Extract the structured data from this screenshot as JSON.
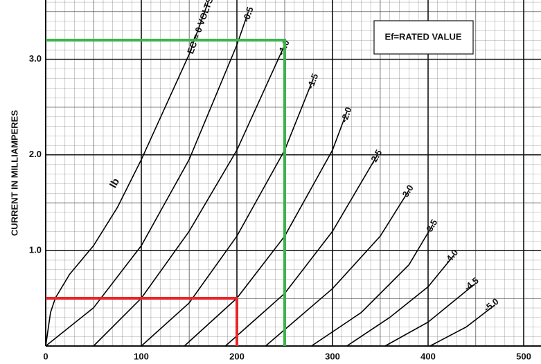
{
  "chart_data": {
    "type": "line",
    "y_label": "CURRENT IN MILLIAMPERES",
    "annotation": "Ef=RATED VALUE",
    "curve_label": "Ib",
    "xlim": [
      0,
      500
    ],
    "ylim": [
      0,
      3.62
    ],
    "xticks": [
      0,
      100,
      200,
      300,
      400,
      500
    ],
    "yticks": [
      {
        "value": 1,
        "label": "1.0"
      },
      {
        "value": 2,
        "label": "2.0"
      },
      {
        "value": 3,
        "label": "3.0"
      }
    ],
    "grid": true,
    "series": [
      {
        "name": "EC = 0 VOLTS",
        "color": "#000000",
        "x": [
          0,
          5,
          10,
          25,
          50,
          75,
          100,
          125,
          150,
          170
        ],
        "values": [
          0,
          0.35,
          0.5,
          0.75,
          1.05,
          1.45,
          1.95,
          2.5,
          3.05,
          3.6
        ]
      },
      {
        "name": "-0.5",
        "color": "#000000",
        "x": [
          0,
          50,
          100,
          150,
          200,
          212
        ],
        "values": [
          0,
          0.4,
          1.05,
          1.95,
          3.15,
          3.5
        ]
      },
      {
        "name": "-1.0",
        "color": "#000000",
        "x": [
          50,
          100,
          150,
          200,
          250
        ],
        "values": [
          0,
          0.5,
          1.2,
          2.05,
          3.15
        ]
      },
      {
        "name": "-1.5",
        "color": "#000000",
        "x": [
          100,
          150,
          200,
          250,
          280
        ],
        "values": [
          0,
          0.45,
          1.15,
          2.05,
          2.8
        ]
      },
      {
        "name": "-2.0",
        "color": "#000000",
        "x": [
          145,
          200,
          250,
          300,
          315
        ],
        "values": [
          0,
          0.5,
          1.15,
          2.05,
          2.45
        ]
      },
      {
        "name": "-2.5",
        "color": "#000000",
        "x": [
          188,
          250,
          300,
          347
        ],
        "values": [
          0,
          0.55,
          1.2,
          2.0
        ]
      },
      {
        "name": "-3.0",
        "color": "#000000",
        "x": [
          230,
          300,
          350,
          380
        ],
        "values": [
          0,
          0.6,
          1.15,
          1.63
        ]
      },
      {
        "name": "-3.5",
        "color": "#000000",
        "x": [
          278,
          330,
          380,
          405
        ],
        "values": [
          0,
          0.35,
          0.85,
          1.27
        ]
      },
      {
        "name": "-4.0",
        "color": "#000000",
        "x": [
          315,
          360,
          400,
          427
        ],
        "values": [
          0,
          0.3,
          0.62,
          0.95
        ]
      },
      {
        "name": "-4.5",
        "color": "#000000",
        "x": [
          355,
          400,
          449
        ],
        "values": [
          0,
          0.25,
          0.65
        ]
      },
      {
        "name": "-5.0",
        "color": "#000000",
        "x": [
          402,
          440,
          470
        ],
        "values": [
          0,
          0.2,
          0.43
        ]
      }
    ],
    "reference_lines": [
      {
        "x": 200,
        "y": 0.5,
        "color": "#e8262a"
      },
      {
        "x": 250,
        "y": 3.2,
        "color": "#3cb44b"
      }
    ]
  }
}
